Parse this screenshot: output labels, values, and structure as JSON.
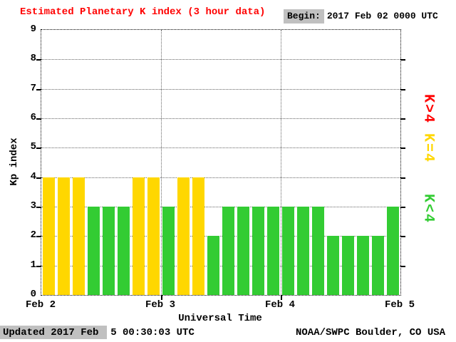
{
  "header": {
    "begin_label": "Begin:",
    "begin_value": "2017 Feb 02 0000 UTC"
  },
  "footer": {
    "updated": "Updated 2017 Feb  5 00:30:03 UTC",
    "credit": "NOAA/SWPC Boulder, CO USA"
  },
  "colors": {
    "background": "#ffffff",
    "title_red": "#ff0000",
    "bar_green": "#33cc33",
    "bar_yellow": "#ffd700",
    "bar_red": "#ff0000",
    "label_bg_grey": "#c0c0c0"
  },
  "legend": [
    {
      "label": "K>4",
      "color": "#ff0000"
    },
    {
      "label": "K=4",
      "color": "#ffd700"
    },
    {
      "label": "K<4",
      "color": "#33cc33"
    }
  ],
  "chart_data": {
    "type": "bar",
    "title": "Estimated Planetary K index (3 hour data)",
    "xlabel": "Universal Time",
    "ylabel": "Kp index",
    "ylim": [
      0,
      9
    ],
    "yticks": [
      0,
      1,
      2,
      3,
      4,
      5,
      6,
      7,
      8,
      9
    ],
    "xticks": [
      "Feb 2",
      "Feb 3",
      "Feb 4",
      "Feb 5"
    ],
    "bars_per_day": 8,
    "bin_hours": 3,
    "values": [
      4,
      4,
      4,
      3,
      3,
      3,
      4,
      4,
      3,
      4,
      4,
      2,
      3,
      3,
      3,
      3,
      3,
      3,
      3,
      2,
      2,
      2,
      2,
      3
    ],
    "color_rule": "green if K<4, yellow if K=4, red if K>4",
    "grid": "dotted horizontal lines at each Kp integer, dotted vertical lines at day boundaries",
    "legend_position": "right side, rotated labels"
  }
}
